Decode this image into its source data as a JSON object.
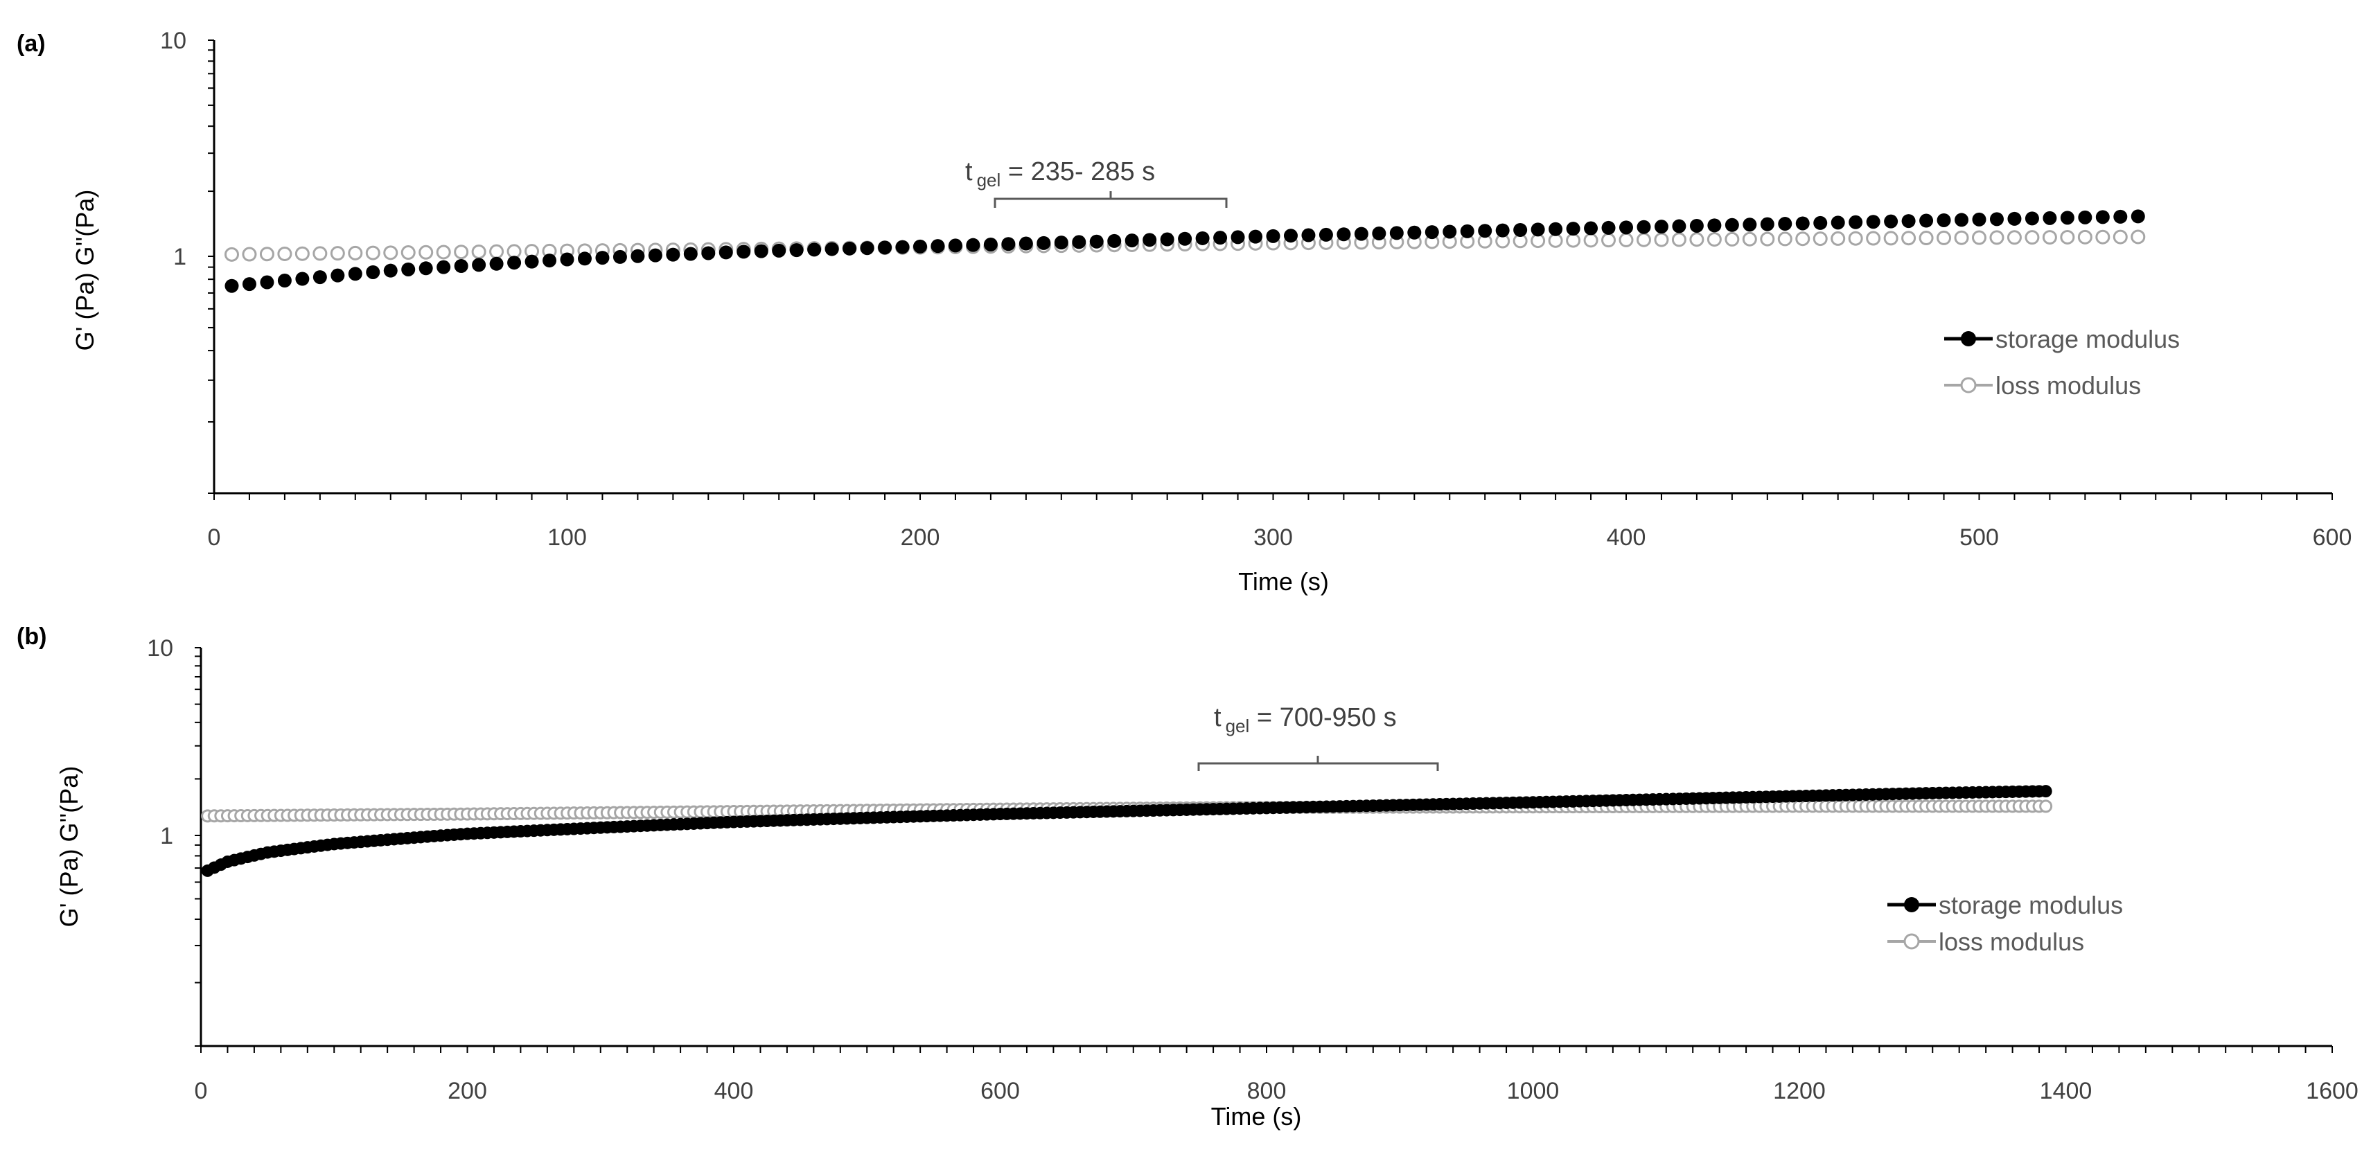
{
  "figure": {
    "panels": [
      {
        "label": "(a)",
        "annotation": {
          "t": "t",
          "sub": "gel",
          "text": " = 235- 285 s"
        }
      },
      {
        "label": "(b)",
        "annotation": {
          "t": "t",
          "sub": "gel",
          "text": " = 700-950 s"
        }
      }
    ]
  },
  "colors": {
    "storage": "#000000",
    "loss": "#a6a6a6",
    "axis": "#000000",
    "bracket": "#595959"
  },
  "chart_data": [
    {
      "type": "scatter",
      "panel": "(a)",
      "xlabel": "Time (s)",
      "ylabel": "G' (Pa) G''(Pa)",
      "xlim": [
        0,
        600
      ],
      "ylim": [
        0.1,
        10
      ],
      "yscale": "log",
      "xticks": [
        0,
        100,
        200,
        300,
        400,
        500,
        600
      ],
      "yticks": [
        1,
        10
      ],
      "grid": false,
      "legend_position": "right",
      "x_range": [
        5,
        545
      ],
      "x_step": 5,
      "series": [
        {
          "name": "storage modulus",
          "marker": "filled-circle",
          "points": [
            [
              5,
              0.75
            ],
            [
              50,
              0.87
            ],
            [
              100,
              0.97
            ],
            [
              150,
              1.05
            ],
            [
              200,
              1.11
            ],
            [
              250,
              1.17
            ],
            [
              300,
              1.24
            ],
            [
              350,
              1.3
            ],
            [
              400,
              1.36
            ],
            [
              450,
              1.42
            ],
            [
              500,
              1.48
            ],
            [
              545,
              1.53
            ]
          ]
        },
        {
          "name": "loss modulus",
          "marker": "open-circle",
          "points": [
            [
              5,
              1.02
            ],
            [
              100,
              1.06
            ],
            [
              200,
              1.1
            ],
            [
              300,
              1.15
            ],
            [
              400,
              1.19
            ],
            [
              500,
              1.22
            ],
            [
              545,
              1.23
            ]
          ]
        }
      ]
    },
    {
      "type": "scatter",
      "panel": "(b)",
      "xlabel": "Time (s)",
      "ylabel": "G' (Pa) G''(Pa)",
      "xlim": [
        0,
        1600
      ],
      "ylim": [
        0.1,
        10
      ],
      "yscale": "log",
      "xticks": [
        0,
        200,
        400,
        600,
        800,
        1000,
        1200,
        1400,
        1600
      ],
      "yticks": [
        1,
        10
      ],
      "grid": false,
      "legend_position": "right",
      "x_range": [
        5,
        1385
      ],
      "x_step": 5,
      "series": [
        {
          "name": "storage modulus",
          "marker": "filled-circle",
          "points": [
            [
              5,
              0.68
            ],
            [
              20,
              0.75
            ],
            [
              50,
              0.83
            ],
            [
              100,
              0.91
            ],
            [
              200,
              1.02
            ],
            [
              300,
              1.1
            ],
            [
              400,
              1.18
            ],
            [
              500,
              1.24
            ],
            [
              600,
              1.3
            ],
            [
              700,
              1.35
            ],
            [
              800,
              1.4
            ],
            [
              900,
              1.45
            ],
            [
              1000,
              1.5
            ],
            [
              1100,
              1.56
            ],
            [
              1200,
              1.62
            ],
            [
              1300,
              1.68
            ],
            [
              1385,
              1.72
            ]
          ]
        },
        {
          "name": "loss modulus",
          "marker": "open-circle",
          "points": [
            [
              5,
              1.27
            ],
            [
              200,
              1.3
            ],
            [
              400,
              1.34
            ],
            [
              600,
              1.38
            ],
            [
              800,
              1.41
            ],
            [
              1000,
              1.42
            ],
            [
              1200,
              1.43
            ],
            [
              1385,
              1.43
            ]
          ]
        }
      ]
    }
  ]
}
